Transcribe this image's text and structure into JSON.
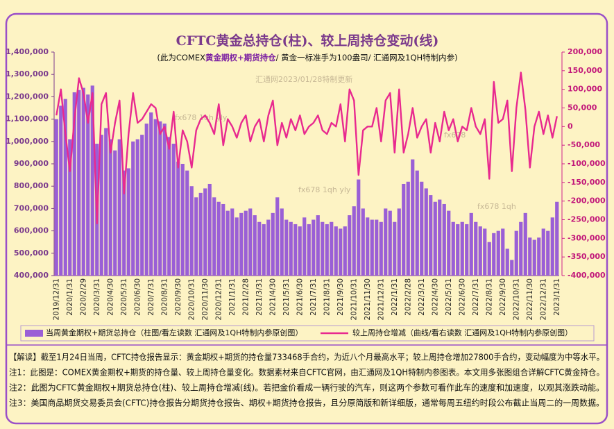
{
  "chart_data": {
    "type": "bar-line",
    "title": "CFTC黄金总持仓(柱)、较上周持仓变动(线)",
    "subtitle": [
      "(此为COMEX",
      "黄金期权+期货持仓",
      "/ 黄金一标准手为100盎司/ 汇通网及1QH特制内参)"
    ],
    "watermarks": [
      "汇通网2023/01/28特制更新",
      "fx678 1qh yly",
      "fx678 1qh yly",
      "fx678",
      "fx678 1qh"
    ],
    "categories": [
      "2019/12/31",
      null,
      null,
      "2020/1/31",
      null,
      null,
      "2020/2/29",
      null,
      null,
      "2020/3/31",
      null,
      null,
      "2020/4/30",
      null,
      null,
      "2020/5/31",
      null,
      null,
      "2020/6/30",
      null,
      null,
      "2020/7/31",
      null,
      null,
      "2020/8/31",
      null,
      null,
      "2020/9/30",
      null,
      null,
      "2020/10/31",
      null,
      null,
      "2020/11/30",
      null,
      null,
      "2020/12/31",
      null,
      null,
      "2021/1/31",
      null,
      null,
      "2021/2/28",
      null,
      null,
      "2021/3/31",
      null,
      null,
      "2021/4/30",
      null,
      null,
      "2021/5/31",
      null,
      null,
      "2021/6/30",
      null,
      null,
      "2021/7/31",
      null,
      null,
      "2021/8/31",
      null,
      null,
      "2021/9/30",
      null,
      null,
      "2021/10/31",
      null,
      null,
      "2021/11/30",
      null,
      null,
      "2021/12/31",
      null,
      null,
      "2022/1/31",
      null,
      null,
      "2022/2/28",
      null,
      null,
      "2022/3/31",
      null,
      null,
      "2022/4/30",
      null,
      null,
      "2022/5/31",
      null,
      null,
      "2022/6/30",
      null,
      null,
      "2022/7/31",
      null,
      null,
      "2022/8/31",
      null,
      null,
      "2022/9/30",
      null,
      null,
      "2022/10/31",
      null,
      null,
      "2022/11/30",
      null,
      null,
      "2022/12/31",
      null,
      null,
      "2023/1/31"
    ],
    "series": [
      {
        "name": "当周黄金期权+期货总持仓（柱图/看左读数 汇通网及1QH特制内参原创图）",
        "color": "#9a5fd6",
        "axis": "y",
        "values": [
          1100000,
          1160000,
          1190000,
          1010000,
          1220000,
          1230000,
          1240000,
          1210000,
          1250000,
          990000,
          1030000,
          1060000,
          1010000,
          960000,
          1010000,
          870000,
          880000,
          1000000,
          1010000,
          1030000,
          1080000,
          1130000,
          1100000,
          1090000,
          1080000,
          1020000,
          990000,
          910000,
          900000,
          870000,
          800000,
          750000,
          770000,
          790000,
          810000,
          750000,
          730000,
          720000,
          690000,
          700000,
          660000,
          680000,
          690000,
          700000,
          670000,
          640000,
          630000,
          650000,
          680000,
          750000,
          700000,
          650000,
          640000,
          630000,
          620000,
          660000,
          630000,
          650000,
          670000,
          640000,
          630000,
          640000,
          620000,
          610000,
          620000,
          670000,
          710000,
          830000,
          700000,
          660000,
          650000,
          650000,
          640000,
          700000,
          690000,
          640000,
          700000,
          810000,
          820000,
          920000,
          870000,
          820000,
          790000,
          760000,
          730000,
          740000,
          720000,
          690000,
          640000,
          630000,
          640000,
          630000,
          680000,
          640000,
          620000,
          610000,
          550000,
          590000,
          600000,
          610000,
          520000,
          470000,
          600000,
          640000,
          680000,
          570000,
          560000,
          570000,
          610000,
          600000,
          660000,
          730000
        ]
      },
      {
        "name": "较上周持仓增减（曲线/看右读数 汇通网及1QH特制内参原创图）",
        "color": "#e8298f",
        "axis": "y2",
        "values": [
          30000,
          100000,
          -20000,
          -120000,
          20000,
          130000,
          90000,
          10000,
          90000,
          -260000,
          60000,
          90000,
          -70000,
          10000,
          70000,
          -180000,
          -20000,
          90000,
          10000,
          20000,
          40000,
          60000,
          50000,
          -20000,
          0,
          -60000,
          40000,
          -110000,
          -10000,
          -40000,
          -110000,
          -10000,
          20000,
          30000,
          10000,
          -20000,
          60000,
          -50000,
          20000,
          0,
          -30000,
          10000,
          30000,
          -40000,
          0,
          20000,
          -40000,
          30000,
          70000,
          -50000,
          10000,
          -30000,
          20000,
          -10000,
          30000,
          -20000,
          0,
          10000,
          30000,
          -10000,
          -20000,
          10000,
          0,
          60000,
          -40000,
          100000,
          70000,
          -130000,
          -10000,
          0,
          0,
          50000,
          -40000,
          70000,
          90000,
          -70000,
          100000,
          -70000,
          -20000,
          50000,
          -30000,
          0,
          20000,
          -70000,
          10000,
          -40000,
          40000,
          -10000,
          20000,
          -40000,
          0,
          -10000,
          50000,
          0,
          -20000,
          20000,
          -140000,
          120000,
          10000,
          20000,
          70000,
          -120000,
          50000,
          145000,
          45000,
          -110000,
          0,
          40000,
          -20000,
          30000,
          -30000,
          27800
        ]
      }
    ],
    "ylim": [
      400000,
      1400000
    ],
    "yticks": [
      {
        "value": 400000,
        "label": "400,000"
      },
      {
        "value": 500000,
        "label": "500,000"
      },
      {
        "value": 600000,
        "label": "600,000"
      },
      {
        "value": 700000,
        "label": "700,000"
      },
      {
        "value": 800000,
        "label": "800,000"
      },
      {
        "value": 900000,
        "label": "900,000"
      },
      {
        "value": 1000000,
        "label": "1,000,000"
      },
      {
        "value": 1100000,
        "label": "1,100,000"
      },
      {
        "value": 1200000,
        "label": "1,200,000"
      },
      {
        "value": 1300000,
        "label": "1,300,000"
      },
      {
        "value": 1400000,
        "label": "1,400,000"
      }
    ],
    "y2lim": [
      -400000,
      200000
    ],
    "y2ticks": [
      {
        "value": -400000,
        "label": "-400,000"
      },
      {
        "value": -350000,
        "label": "-350,000"
      },
      {
        "value": -300000,
        "label": "-300,000"
      },
      {
        "value": -250000,
        "label": "-250,000"
      },
      {
        "value": -200000,
        "label": "-200,000"
      },
      {
        "value": -150000,
        "label": "-150,000"
      },
      {
        "value": -100000,
        "label": "-100,000"
      },
      {
        "value": -50000,
        "label": "-50,000"
      },
      0,
      {
        "value": 50000,
        "label": "50,000"
      },
      {
        "value": 100000,
        "label": "100,000"
      },
      {
        "value": 150000,
        "label": "150,000"
      },
      {
        "value": 200000,
        "label": "200,000"
      }
    ],
    "grid": false,
    "notes": [
      "【解读】截至1月24日当周，CFTC持仓报告显示：黄金期权+期货的持仓量733468手合约，为近八个月最高水平；较上周持仓增加27800手合约，变动幅度为中等水平。",
      "注1：此图是：COMEX黄金期权+期货的持仓量、较上周持仓量变化。数据素材来自CFTC官网，由汇通网及1QH特制内参图表。本文用多张图组合详解CFTC黄金持仓。",
      "注2：此图为CFTC黄金期权+期货总持仓(柱)、较上周持仓增减(线)。若把金价看成一辆行驶的汽车，则这两个参数可看作此车的速度和加速度，以观其涨跌动能。",
      "注3：美国商品期货交易委员会(CFTC)持仓报告分期货持仓报告、期权+期货持仓报告，且分原简版和新详细版，通常每周五纽约时段公布截止当周二的一周数据。"
    ]
  }
}
